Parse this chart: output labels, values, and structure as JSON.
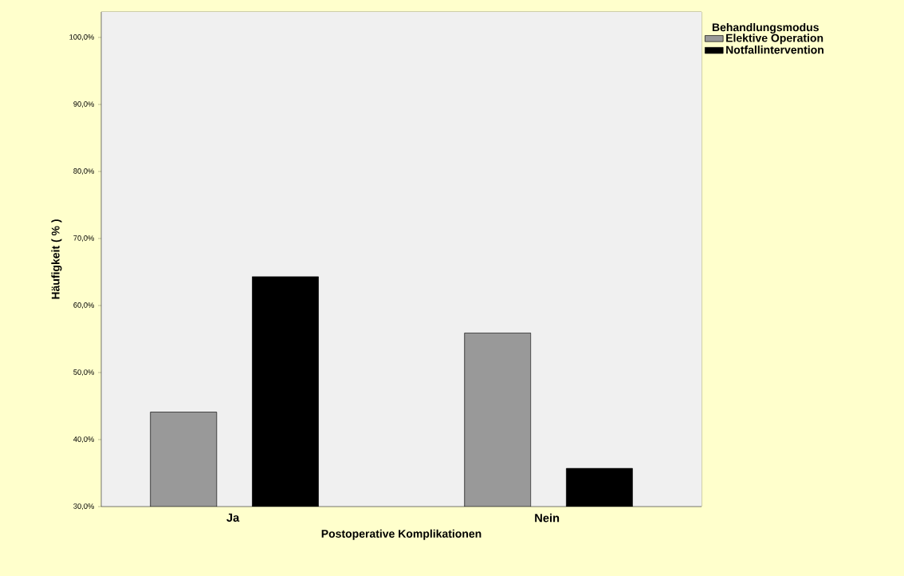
{
  "chart_data": {
    "type": "bar",
    "xlabel": "Postoperative Komplikationen",
    "ylabel": "Häufigkeit ( % )",
    "legend_title": "Behandlungsmodus",
    "categories": [
      "Ja",
      "Nein"
    ],
    "series": [
      {
        "name": "Elektive Operation",
        "color": "#999999",
        "values": [
          44.1,
          55.9
        ]
      },
      {
        "name": "Notfallintervention",
        "color": "#000000",
        "values": [
          64.3,
          35.7
        ]
      }
    ],
    "ylim": [
      30,
      103.8
    ],
    "yticks": [
      {
        "value": 30,
        "label": "30,0%"
      },
      {
        "value": 40,
        "label": "40,0%"
      },
      {
        "value": 50,
        "label": "50,0%"
      },
      {
        "value": 60,
        "label": "60,0%"
      },
      {
        "value": 70,
        "label": "70,0%"
      },
      {
        "value": 80,
        "label": "80,0%"
      },
      {
        "value": 90,
        "label": "90,0%"
      },
      {
        "value": 100,
        "label": "100,0%"
      }
    ],
    "grid": false,
    "legend": "top right"
  }
}
